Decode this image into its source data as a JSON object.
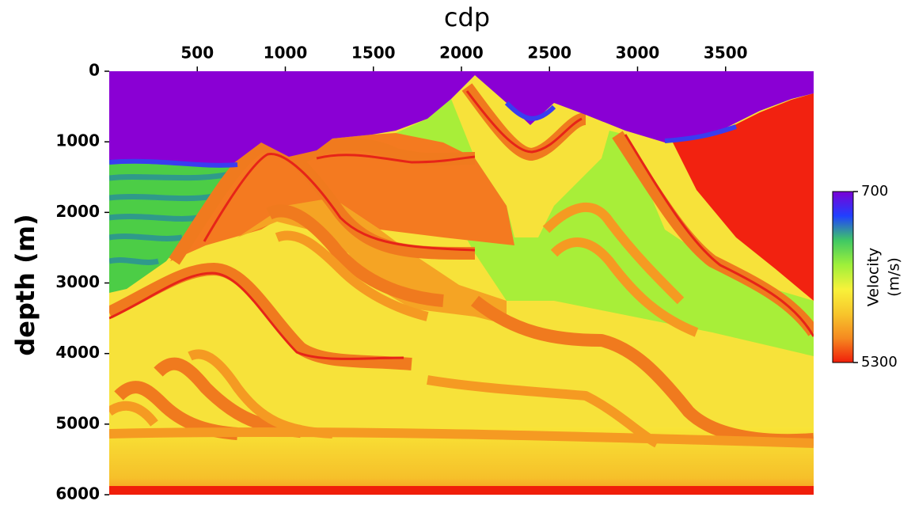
{
  "chart_data": {
    "type": "image",
    "title": "cdp",
    "y_label": "depth (m)",
    "xlim": [
      0,
      4000
    ],
    "xticks": [
      500,
      1000,
      1500,
      2000,
      2500,
      3000,
      3500
    ],
    "ylim": [
      0,
      6000
    ],
    "yticks": [
      0,
      1000,
      2000,
      3000,
      4000,
      5000,
      6000
    ],
    "y_reversed": true,
    "colorbar": {
      "label": [
        "Velocity",
        "(m/s)"
      ],
      "lim": [
        700,
        5300
      ],
      "ticks": [
        700,
        5300
      ],
      "colormap": [
        "#7a00d6",
        "#2040ff",
        "#3fc864",
        "#9ef03a",
        "#f8f23a",
        "#f7c62c",
        "#f58a20",
        "#f01e0a"
      ]
    }
  }
}
